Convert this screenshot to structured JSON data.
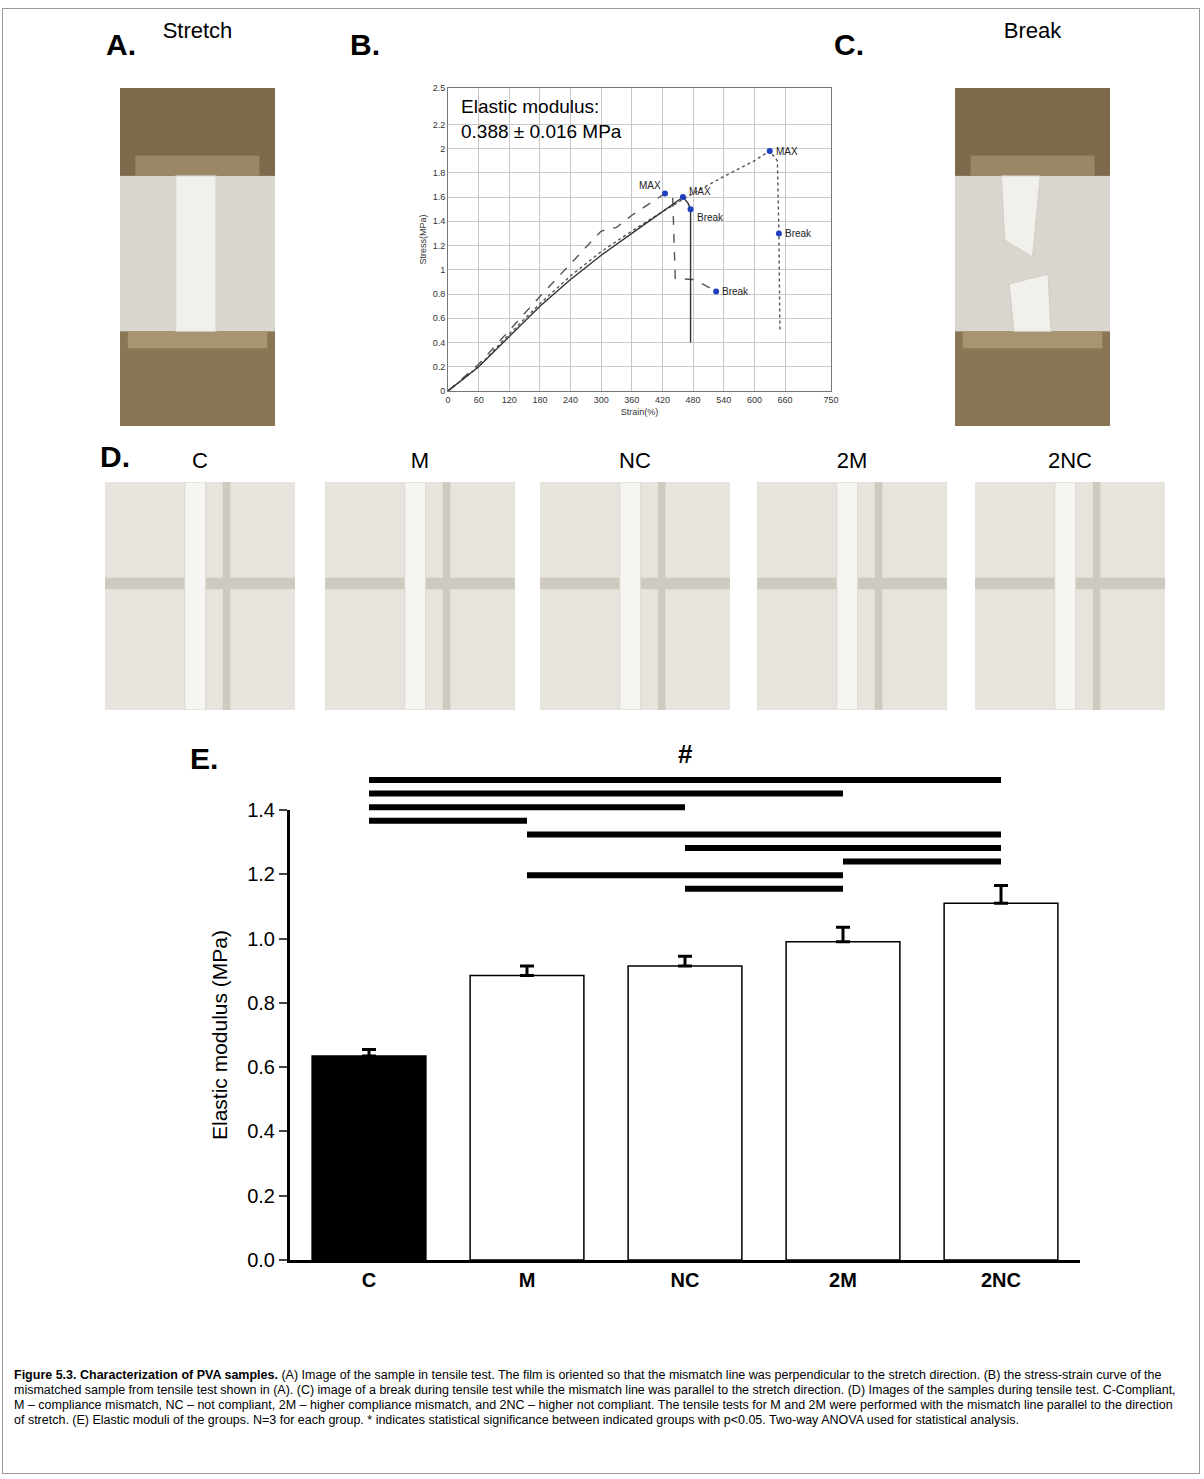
{
  "panels": [
    {
      "label": "A.",
      "title": "Stretch"
    },
    {
      "label": "B."
    },
    {
      "label": "C.",
      "title": "Break"
    },
    {
      "label": "D.",
      "titles": [
        "C",
        "M",
        "NC",
        "2M",
        "2NC"
      ]
    },
    {
      "label": "E."
    }
  ],
  "chart_data": [
    {
      "type": "line",
      "x_label": "Strain(%)",
      "y_label": "Stress(MPa)",
      "annotation_text": [
        "Elastic modulus:",
        "0.388 ± 0.016 MPa"
      ],
      "xlim": [
        0,
        750
      ],
      "xticks": [
        0,
        60,
        120,
        180,
        240,
        300,
        360,
        420,
        480,
        540,
        600,
        660,
        750
      ],
      "ylim": [
        0,
        2.5
      ],
      "yticks": [
        0,
        0.2,
        0.4,
        0.6,
        0.8,
        1,
        1.2,
        1.4,
        1.6,
        1.8,
        2,
        2.2,
        2.5
      ],
      "grid": true,
      "series": [
        {
          "color": "#555555",
          "line_style": "dotted",
          "x": [
            0,
            60,
            120,
            180,
            240,
            300,
            360,
            420,
            480,
            540,
            600,
            630,
            645,
            648,
            650
          ],
          "values": [
            0,
            0.2,
            0.47,
            0.72,
            0.95,
            1.15,
            1.32,
            1.48,
            1.63,
            1.77,
            1.9,
            1.98,
            1.9,
            1.3,
            0.5
          ]
        },
        {
          "color": "#555555",
          "line_style": "dashed",
          "x": [
            0,
            60,
            120,
            180,
            240,
            300,
            330,
            360,
            425,
            440,
            445,
            480,
            500,
            525
          ],
          "values": [
            0,
            0.22,
            0.5,
            0.78,
            1.05,
            1.32,
            1.35,
            1.45,
            1.63,
            1.6,
            0.93,
            0.92,
            0.88,
            0.82
          ]
        },
        {
          "color": "#333333",
          "line_style": "solid",
          "x": [
            0,
            60,
            120,
            180,
            240,
            300,
            360,
            420,
            460,
            470,
            475,
            475
          ],
          "values": [
            0,
            0.2,
            0.45,
            0.7,
            0.92,
            1.12,
            1.3,
            1.48,
            1.6,
            1.55,
            1.5,
            0.4
          ]
        }
      ],
      "annotations": [
        {
          "x": 425,
          "y": 1.63,
          "text": "MAX"
        },
        {
          "x": 460,
          "y": 1.6,
          "text": "MAX"
        },
        {
          "x": 475,
          "y": 1.5,
          "text": "Break"
        },
        {
          "x": 525,
          "y": 0.82,
          "text": "Break"
        },
        {
          "x": 630,
          "y": 1.98,
          "text": "MAX"
        },
        {
          "x": 648,
          "y": 1.3,
          "text": "Break"
        }
      ]
    },
    {
      "type": "bar",
      "y_label": "Elastic modulus (MPa)",
      "categories": [
        "C",
        "M",
        "NC",
        "2M",
        "2NC"
      ],
      "values": [
        0.635,
        0.885,
        0.915,
        0.99,
        1.11
      ],
      "errors": [
        0.02,
        0.03,
        0.03,
        0.045,
        0.055
      ],
      "colors": [
        "#000000",
        "#ffffff",
        "#ffffff",
        "#ffffff",
        "#ffffff"
      ],
      "ylim": [
        0,
        1.4
      ],
      "yticks": [
        {
          "value": 0,
          "label": "0.0"
        },
        {
          "value": 0.2,
          "label": "0.2"
        },
        {
          "value": 0.4,
          "label": "0.4"
        },
        {
          "value": 0.6,
          "label": "0.6"
        },
        {
          "value": 0.8,
          "label": "0.8"
        },
        {
          "value": 1,
          "label": "1.0"
        },
        {
          "value": 1.2,
          "label": "1.2"
        },
        {
          "value": 1.4,
          "label": "1.4"
        }
      ],
      "grid": false,
      "significance": {
        "symbol": "#",
        "pairs": [
          [
            "C",
            "2NC"
          ],
          [
            "C",
            "2M"
          ],
          [
            "C",
            "NC"
          ],
          [
            "C",
            "M"
          ],
          [
            "M",
            "2NC"
          ],
          [
            "NC",
            "2NC"
          ],
          [
            "2M",
            "2NC"
          ],
          [
            "M",
            "2M"
          ],
          [
            "NC",
            "2M"
          ]
        ]
      }
    }
  ],
  "caption": {
    "title": "Figure 5.3. Characterization of PVA samples.",
    "text": "(A) Image of the sample in tensile test. The film is oriented so that the mismatch line was perpendicular to the stretch direction. (B) the stress-strain curve of the mismatched sample from tensile test shown in (A). (C) image of a break during tensile test while the mismatch line was parallel to the stretch direction. (D) Images of the samples during tensile test. C-Compliant, M – compliance mismatch, NC – not compliant, 2M – higher compliance mismatch, and 2NC – higher not compliant. The tensile tests for M and 2M were performed with the mismatch line parallel to the direction of stretch. (E) Elastic moduli of the groups. N=3 for each group. * indicates statistical significance between indicated groups with p<0.05. Two-way ANOVA used for statistical analysis."
  }
}
